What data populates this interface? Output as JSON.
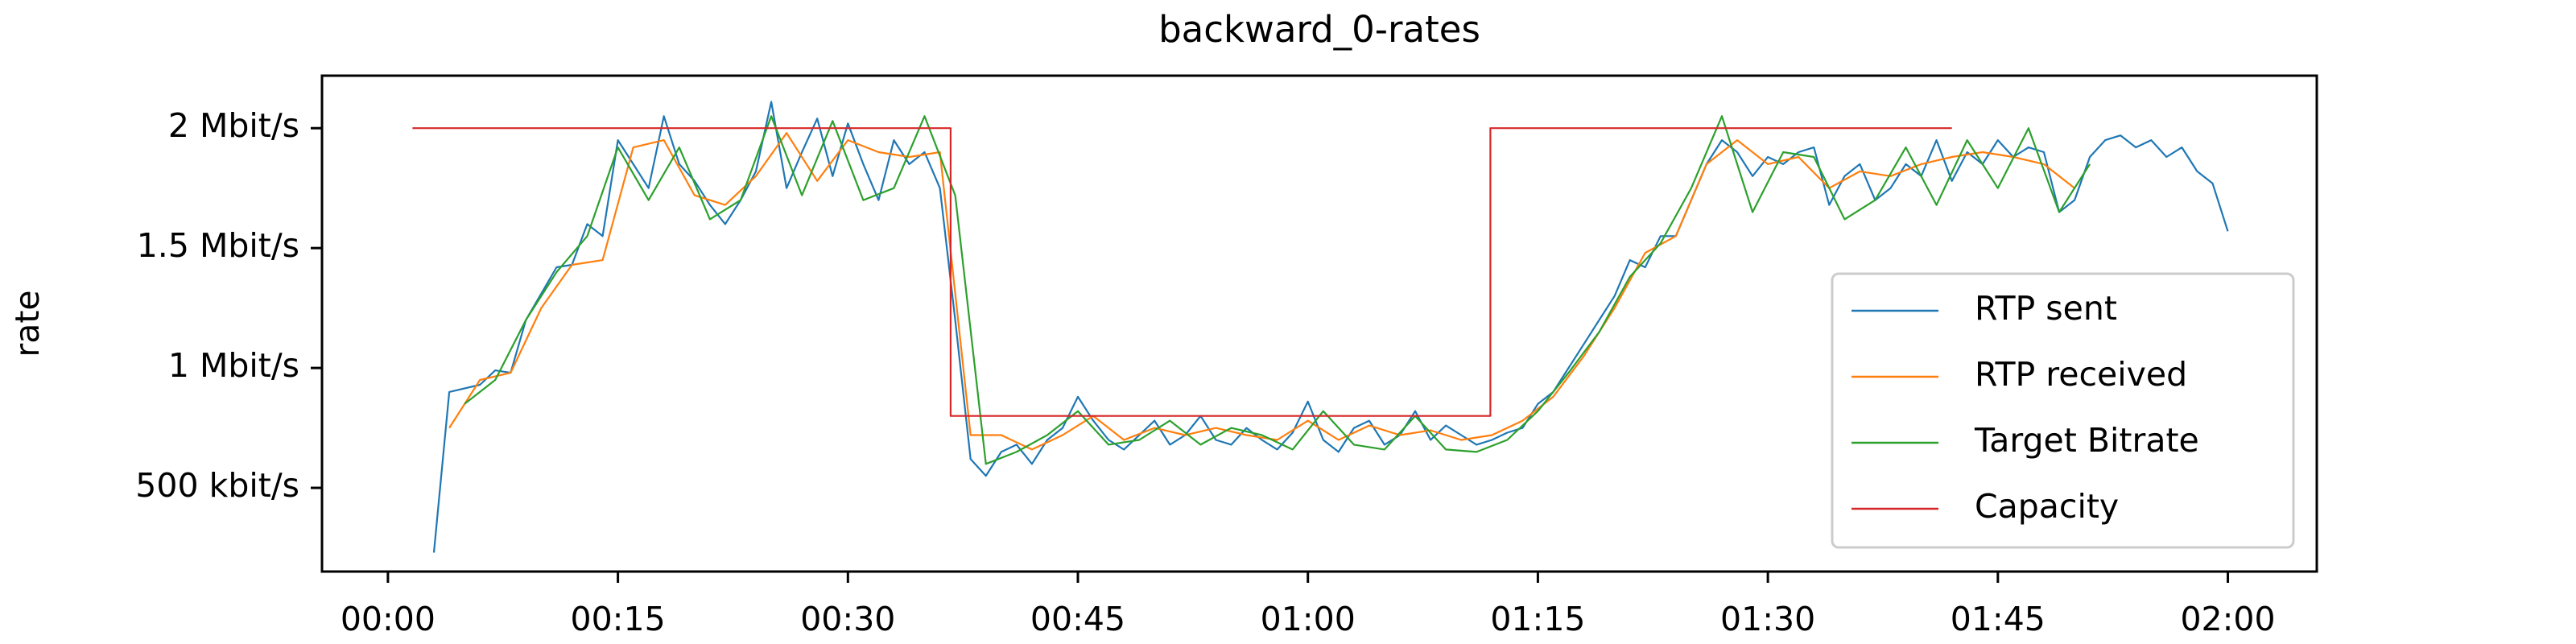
{
  "chart_data": {
    "type": "line",
    "title": "backward_0-rates",
    "y_label": "rate",
    "xlim": [
      -4.3,
      125.8
    ],
    "ylim": [
      0.151,
      2.219
    ],
    "xticks": [
      {
        "value": 0,
        "label": "00:00"
      },
      {
        "value": 15,
        "label": "00:15"
      },
      {
        "value": 30,
        "label": "00:30"
      },
      {
        "value": 45,
        "label": "00:45"
      },
      {
        "value": 60,
        "label": "01:00"
      },
      {
        "value": 75,
        "label": "01:15"
      },
      {
        "value": 90,
        "label": "01:30"
      },
      {
        "value": 105,
        "label": "01:45"
      },
      {
        "value": 120,
        "label": "02:00"
      }
    ],
    "yticks": [
      {
        "value": 0.5,
        "label": "500 kbit/s"
      },
      {
        "value": 1,
        "label": "1 Mbit/s"
      },
      {
        "value": 1.5,
        "label": "1.5 Mbit/s"
      },
      {
        "value": 2,
        "label": "2 Mbit/s"
      }
    ],
    "grid": false,
    "legend": "lower right",
    "series": [
      {
        "name": "RTP sent",
        "color": "#1f77b4",
        "x": [
          3,
          4,
          6,
          7,
          8,
          9,
          11,
          12,
          13,
          14,
          15,
          16,
          17,
          18,
          19,
          20,
          21,
          22,
          23,
          24,
          25,
          26,
          27,
          28,
          29,
          30,
          31,
          32,
          33,
          34,
          35,
          36,
          37,
          38,
          39,
          40,
          41,
          42,
          43,
          44,
          45,
          46,
          47,
          48,
          49,
          50,
          51,
          52,
          53,
          54,
          55,
          56,
          57,
          58,
          59,
          60,
          61,
          62,
          63,
          64,
          65,
          66,
          67,
          68,
          69,
          70,
          71,
          72,
          73,
          74,
          75,
          76,
          77,
          78,
          79,
          80,
          81,
          82,
          83,
          84,
          85,
          86,
          87,
          88,
          89,
          90,
          91,
          92,
          93,
          94,
          95,
          96,
          97,
          98,
          99,
          100,
          101,
          102,
          103,
          104,
          105,
          106,
          107,
          108,
          109,
          110,
          111,
          112,
          113,
          114,
          115,
          116,
          117,
          118,
          119,
          120
        ],
        "values": [
          0.23,
          0.9,
          0.93,
          0.99,
          0.98,
          1.2,
          1.42,
          1.43,
          1.6,
          1.55,
          1.95,
          1.85,
          1.75,
          2.05,
          1.85,
          1.78,
          1.68,
          1.6,
          1.7,
          1.82,
          2.11,
          1.75,
          1.9,
          2.04,
          1.8,
          2.02,
          1.85,
          1.7,
          1.95,
          1.85,
          1.9,
          1.75,
          1.2,
          0.62,
          0.55,
          0.65,
          0.68,
          0.6,
          0.7,
          0.75,
          0.88,
          0.78,
          0.7,
          0.66,
          0.72,
          0.78,
          0.68,
          0.72,
          0.8,
          0.7,
          0.68,
          0.75,
          0.7,
          0.66,
          0.73,
          0.86,
          0.7,
          0.65,
          0.75,
          0.78,
          0.68,
          0.72,
          0.82,
          0.7,
          0.76,
          0.72,
          0.68,
          0.7,
          0.73,
          0.75,
          0.85,
          0.9,
          1.0,
          1.1,
          1.2,
          1.3,
          1.45,
          1.42,
          1.55,
          1.55,
          1.7,
          1.85,
          1.95,
          1.9,
          1.8,
          1.88,
          1.85,
          1.9,
          1.92,
          1.68,
          1.8,
          1.85,
          1.7,
          1.75,
          1.85,
          1.8,
          1.95,
          1.78,
          1.9,
          1.85,
          1.95,
          1.88,
          1.92,
          1.9,
          1.65,
          1.7,
          1.88,
          1.95,
          1.97,
          1.92,
          1.95,
          1.88,
          1.92,
          1.82,
          1.77,
          1.57
        ]
      },
      {
        "name": "RTP received",
        "color": "#ff7f0e",
        "x": [
          4,
          6,
          8,
          10,
          12,
          14,
          16,
          18,
          20,
          22,
          24,
          26,
          28,
          30,
          32,
          34,
          36,
          38,
          40,
          42,
          44,
          46,
          48,
          50,
          52,
          54,
          56,
          58,
          60,
          62,
          64,
          66,
          68,
          70,
          72,
          74,
          76,
          78,
          80,
          82,
          84,
          86,
          88,
          90,
          92,
          94,
          96,
          98,
          100,
          102,
          104,
          106,
          108,
          110
        ],
        "values": [
          0.75,
          0.95,
          0.98,
          1.25,
          1.43,
          1.45,
          1.92,
          1.95,
          1.72,
          1.68,
          1.8,
          1.98,
          1.78,
          1.95,
          1.9,
          1.88,
          1.9,
          0.72,
          0.72,
          0.66,
          0.72,
          0.8,
          0.7,
          0.75,
          0.72,
          0.75,
          0.72,
          0.7,
          0.78,
          0.7,
          0.76,
          0.72,
          0.74,
          0.7,
          0.72,
          0.78,
          0.88,
          1.05,
          1.25,
          1.48,
          1.55,
          1.85,
          1.95,
          1.85,
          1.88,
          1.75,
          1.82,
          1.8,
          1.85,
          1.88,
          1.9,
          1.88,
          1.85,
          1.75
        ]
      },
      {
        "name": "Target Bitrate",
        "color": "#2ca02c",
        "x": [
          5,
          7,
          9,
          11,
          13,
          15,
          17,
          19,
          21,
          23,
          25,
          27,
          29,
          31,
          33,
          35,
          37,
          39,
          41,
          43,
          45,
          47,
          49,
          51,
          53,
          55,
          57,
          59,
          61,
          63,
          65,
          67,
          69,
          71,
          73,
          75,
          77,
          79,
          81,
          83,
          85,
          87,
          89,
          91,
          93,
          95,
          97,
          99,
          101,
          103,
          105,
          107,
          109,
          111
        ],
        "values": [
          0.85,
          0.95,
          1.2,
          1.4,
          1.55,
          1.92,
          1.7,
          1.92,
          1.62,
          1.7,
          2.05,
          1.72,
          2.03,
          1.7,
          1.75,
          2.05,
          1.72,
          0.6,
          0.65,
          0.72,
          0.82,
          0.68,
          0.7,
          0.78,
          0.68,
          0.75,
          0.72,
          0.66,
          0.82,
          0.68,
          0.66,
          0.8,
          0.66,
          0.65,
          0.7,
          0.82,
          0.98,
          1.15,
          1.38,
          1.52,
          1.75,
          2.05,
          1.65,
          1.9,
          1.88,
          1.62,
          1.7,
          1.92,
          1.68,
          1.95,
          1.75,
          2.0,
          1.65,
          1.85
        ]
      },
      {
        "name": "Capacity",
        "color": "#d62728",
        "x": [
          1.6,
          36.7,
          36.7,
          71.9,
          71.9,
          102
        ],
        "values": [
          2,
          2,
          0.8,
          0.8,
          2,
          2
        ]
      }
    ]
  }
}
